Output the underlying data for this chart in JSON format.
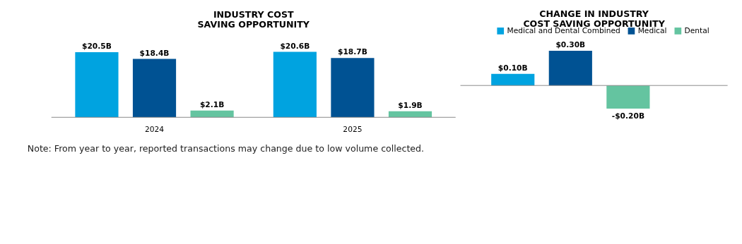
{
  "chart_data": [
    {
      "type": "bar",
      "title": "INDUSTRY COST SAVING OPPORTUNITY",
      "categories": [
        "2024",
        "2025"
      ],
      "series": [
        {
          "name": "Medical and Dental Combined",
          "color": "#00a3e0",
          "values": [
            20.5,
            20.6
          ],
          "value_labels": [
            "$20.5B",
            "$20.6B"
          ]
        },
        {
          "name": "Medical",
          "color": "#005293",
          "values": [
            18.4,
            18.7
          ],
          "value_labels": [
            "$18.4B",
            "$18.7B"
          ]
        },
        {
          "name": "Dental",
          "color": "#64c4a0",
          "values": [
            2.1,
            1.9
          ],
          "value_labels": [
            "$2.1B",
            "$1.9B"
          ]
        }
      ],
      "annotations": [
        "Note: From year to year, reported transactions may change due to low volume collected."
      ],
      "legend": "top right",
      "grid": false
    },
    {
      "type": "bar",
      "title": "CHANGE IN INDUSTRY COST SAVING OPPORTUNITY",
      "categories": [
        null
      ],
      "series": [
        {
          "name": "Medical and Dental Combined",
          "color": "#00a3e0",
          "values": [
            0.1
          ],
          "value_labels": [
            "$0.10B"
          ]
        },
        {
          "name": "Medical",
          "color": "#005293",
          "values": [
            0.3
          ],
          "value_labels": [
            "$0.30B"
          ]
        },
        {
          "name": "Dental",
          "color": "#64c4a0",
          "values": [
            -0.2
          ],
          "value_labels": [
            "-$0.20B"
          ]
        }
      ],
      "legend": "top right",
      "grid": false
    }
  ]
}
